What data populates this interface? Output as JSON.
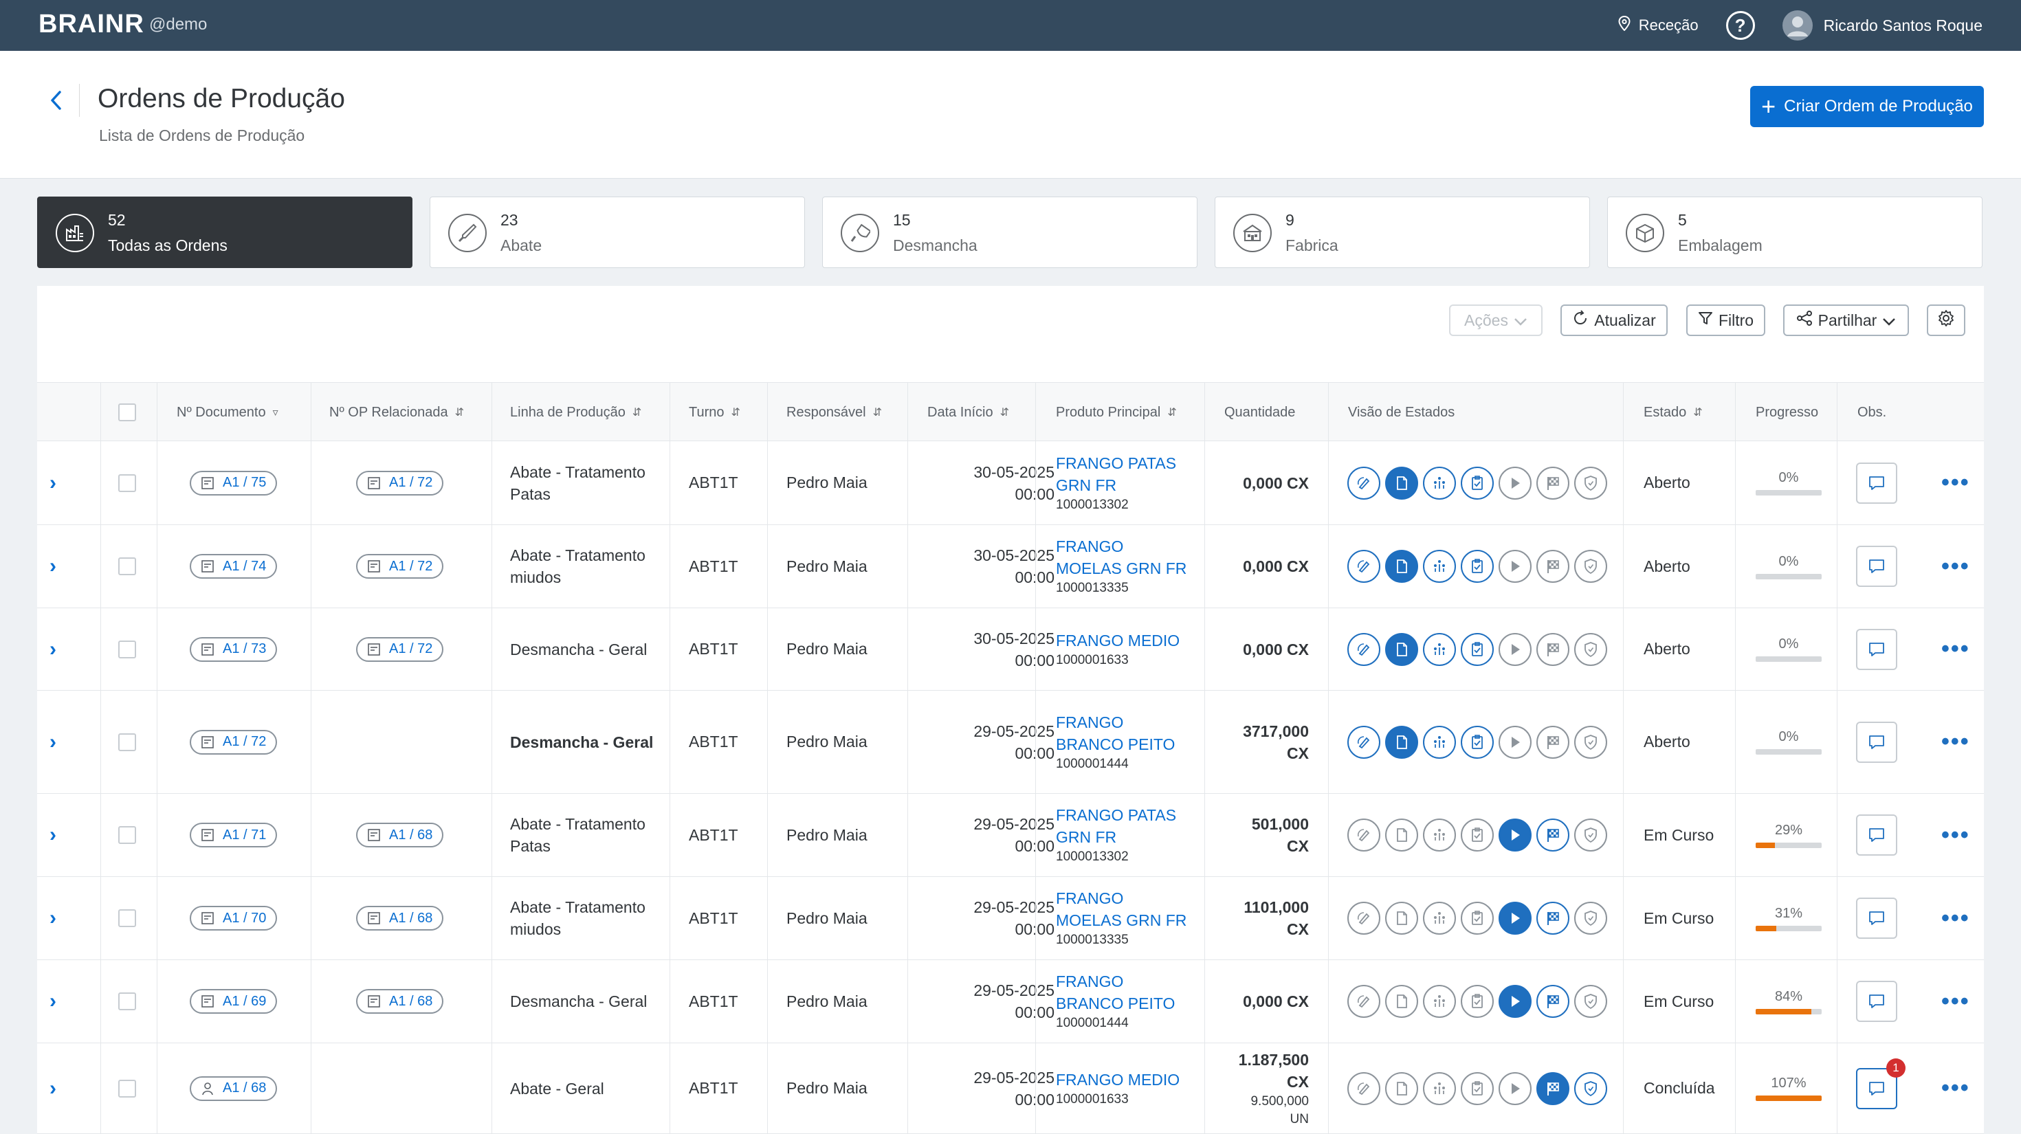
{
  "topbar": {
    "brand": "BRAINR",
    "brand_sub": "@demo",
    "location": "Receção",
    "help": "?",
    "user_name": "Ricardo Santos Roque"
  },
  "header": {
    "title": "Ordens de Produção",
    "subtitle": "Lista de Ordens de Produção",
    "create_label": "Criar Ordem de Produção"
  },
  "cards": [
    {
      "count": "52",
      "label": "Todas as Ordens",
      "icon": "factory-list-icon"
    },
    {
      "count": "23",
      "label": "Abate",
      "icon": "knife-icon"
    },
    {
      "count": "15",
      "label": "Desmancha",
      "icon": "cleaver-icon"
    },
    {
      "count": "9",
      "label": "Fabrica",
      "icon": "factory-icon"
    },
    {
      "count": "5",
      "label": "Embalagem",
      "icon": "package-icon"
    }
  ],
  "toolbar": {
    "actions": "Ações",
    "refresh": "Atualizar",
    "filter": "Filtro",
    "share": "Partilhar"
  },
  "columns": {
    "doc": "Nº Documento",
    "related": "Nº OP Relacionada",
    "line": "Linha de Produção",
    "shift": "Turno",
    "responsible": "Responsável",
    "start": "Data Início",
    "product": "Produto Principal",
    "qty": "Quantidade",
    "states": "Visão de Estados",
    "status": "Estado",
    "progress": "Progresso",
    "obs": "Obs."
  },
  "rows": [
    {
      "doc": "A1 / 75",
      "related": "A1 / 72",
      "line1": "Abate - Tratamento",
      "line2": "Patas",
      "shift": "ABT1T",
      "resp": "Pedro Maia",
      "date": "30-05-2025",
      "time": "00:00",
      "prod1": "FRANGO PATAS",
      "prod2": "GRN FR",
      "code": "1000013302",
      "qty1": "0,000 CX",
      "qty2": "",
      "status": "Aberto",
      "progress": "0%",
      "progress_value": 0
    },
    {
      "doc": "A1 / 74",
      "related": "A1 / 72",
      "line1": "Abate - Tratamento",
      "line2": "miudos",
      "shift": "ABT1T",
      "resp": "Pedro Maia",
      "date": "30-05-2025",
      "time": "00:00",
      "prod1": "FRANGO",
      "prod2": "MOELAS GRN FR",
      "code": "1000013335",
      "qty1": "0,000 CX",
      "qty2": "",
      "status": "Aberto",
      "progress": "0%",
      "progress_value": 0
    },
    {
      "doc": "A1 / 73",
      "related": "A1 / 72",
      "line1": "Desmancha - Geral",
      "line2": "",
      "shift": "ABT1T",
      "resp": "Pedro Maia",
      "date": "30-05-2025",
      "time": "00:00",
      "prod1": "FRANGO MEDIO",
      "prod2": "",
      "code": "1000001633",
      "qty1": "0,000 CX",
      "qty2": "",
      "status": "Aberto",
      "progress": "0%",
      "progress_value": 0
    },
    {
      "doc": "A1 / 72",
      "related": "",
      "line1": "Desmancha - Geral",
      "line2": "",
      "shift": "ABT1T",
      "resp": "Pedro Maia",
      "date": "29-05-2025",
      "time": "00:00",
      "prod1": "FRANGO",
      "prod2": "BRANCO PEITO",
      "code": "1000001444",
      "qty1": "3717,000",
      "qty2": "CX",
      "status": "Aberto",
      "progress": "0%",
      "progress_value": 0
    },
    {
      "doc": "A1 / 71",
      "related": "A1 / 68",
      "line1": "Abate - Tratamento",
      "line2": "Patas",
      "shift": "ABT1T",
      "resp": "Pedro Maia",
      "date": "29-05-2025",
      "time": "00:00",
      "prod1": "FRANGO PATAS",
      "prod2": "GRN FR",
      "code": "1000013302",
      "qty1": "501,000",
      "qty2": "CX",
      "status": "Em Curso",
      "progress": "29%",
      "progress_value": 0.29
    },
    {
      "doc": "A1 / 70",
      "related": "A1 / 68",
      "line1": "Abate - Tratamento",
      "line2": "miudos",
      "shift": "ABT1T",
      "resp": "Pedro Maia",
      "date": "29-05-2025",
      "time": "00:00",
      "prod1": "FRANGO",
      "prod2": "MOELAS GRN FR",
      "code": "1000013335",
      "qty1": "1101,000",
      "qty2": "CX",
      "status": "Em Curso",
      "progress": "31%",
      "progress_value": 0.31
    },
    {
      "doc": "A1 / 69",
      "related": "A1 / 68",
      "line1": "Desmancha - Geral",
      "line2": "",
      "shift": "ABT1T",
      "resp": "Pedro Maia",
      "date": "29-05-2025",
      "time": "00:00",
      "prod1": "FRANGO",
      "prod2": "BRANCO PEITO",
      "code": "1000001444",
      "qty1": "0,000 CX",
      "qty2": "",
      "status": "Em Curso",
      "progress": "84%",
      "progress_value": 0.84
    },
    {
      "doc": "A1 / 68",
      "related": "",
      "line1": "Abate - Geral",
      "line2": "",
      "shift": "ABT1T",
      "resp": "Pedro Maia",
      "date": "29-05-2025",
      "time": "00:00",
      "prod1": "FRANGO MEDIO",
      "prod2": "",
      "code": "1000001633",
      "qty1": "1.187,500",
      "qty2": "CX",
      "qty3": "9.500,000",
      "qty4": "UN",
      "status": "Concluída",
      "progress": "107%",
      "progress_value": 1.0,
      "obs_badge": "1"
    }
  ],
  "colors": {
    "accent": "#0a6ed1",
    "topbar": "#344a5e",
    "progress": "#e9730c",
    "badge": "#d32f2f"
  }
}
